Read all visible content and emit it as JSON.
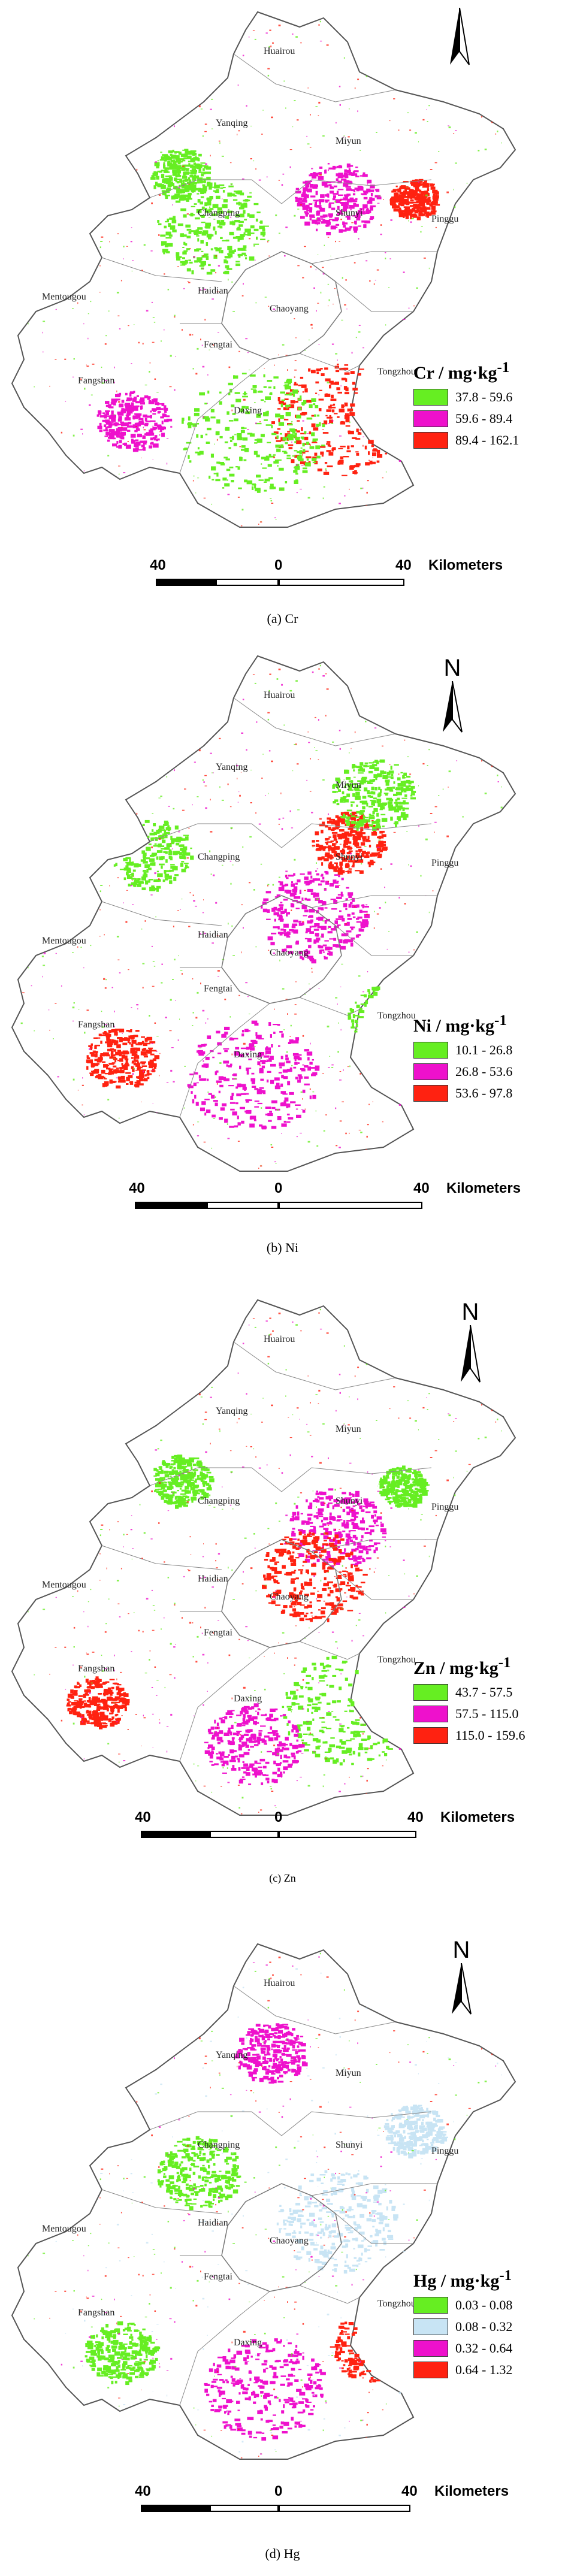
{
  "north_label": "N",
  "scale": {
    "left": "40",
    "center": "0",
    "right": "40",
    "unit": "Kilometers"
  },
  "places": [
    "Huairou",
    "Yanqing",
    "Miyun",
    "Changping",
    "Shunyi",
    "Pinggu",
    "Mentougou",
    "Haidian",
    "Chaoyang",
    "Fengtai",
    "Fangshan",
    "Daxing",
    "Tongzhou"
  ],
  "panels": [
    {
      "caption": "(a) Cr",
      "legend_title": "Cr / mg·kg",
      "legend_sup": "-1",
      "classes": [
        {
          "label": "37.8 - 59.6",
          "color": "#66ee22"
        },
        {
          "label": "59.6 - 89.4",
          "color": "#ee11cc"
        },
        {
          "label": "89.4 - 162.1",
          "color": "#ff2211"
        }
      ]
    },
    {
      "caption": "(b) Ni",
      "legend_title": "Ni / mg·kg",
      "legend_sup": "-1",
      "classes": [
        {
          "label": "10.1 - 26.8",
          "color": "#66ee22"
        },
        {
          "label": "26.8 - 53.6",
          "color": "#ee11cc"
        },
        {
          "label": "53.6 - 97.8",
          "color": "#ff2211"
        }
      ]
    },
    {
      "caption": "(c) Zn",
      "legend_title": "Zn / mg·kg",
      "legend_sup": "-1",
      "classes": [
        {
          "label": "43.7 - 57.5",
          "color": "#66ee22"
        },
        {
          "label": "57.5 - 115.0",
          "color": "#ee11cc"
        },
        {
          "label": "115.0 - 159.6",
          "color": "#ff2211"
        }
      ]
    },
    {
      "caption": "(d) Hg",
      "legend_title": "Hg / mg·kg",
      "legend_sup": "-1",
      "classes": [
        {
          "label": "0.03 - 0.08",
          "color": "#66ee22"
        },
        {
          "label": "0.08 - 0.32",
          "color": "#c8e4f4"
        },
        {
          "label": "0.32 - 0.64",
          "color": "#ee11cc"
        },
        {
          "label": "0.64 - 1.32",
          "color": "#ff2211"
        }
      ]
    }
  ]
}
